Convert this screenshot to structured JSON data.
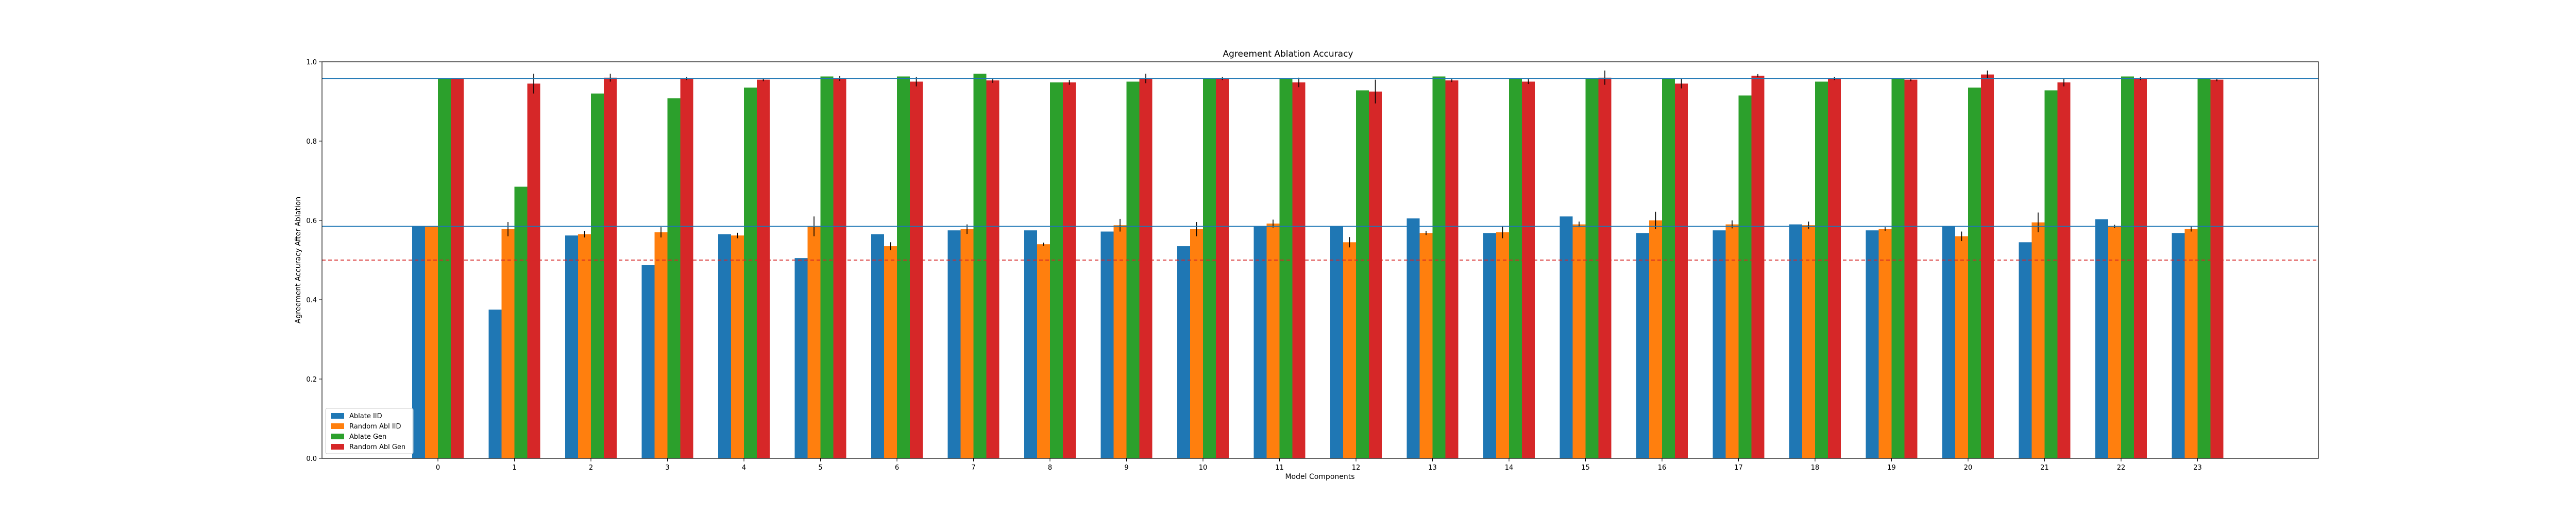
{
  "chart_data": {
    "type": "bar",
    "title": "Agreement Ablation Accuracy",
    "xlabel": "Model Components",
    "ylabel": "Agreement Accuracy After Ablation",
    "ylim": [
      0,
      1.0
    ],
    "yticks": [
      "0.0",
      "0.2",
      "0.4",
      "0.6",
      "0.8",
      "1.0"
    ],
    "categories": [
      "0",
      "1",
      "2",
      "3",
      "4",
      "5",
      "6",
      "7",
      "8",
      "9",
      "10",
      "11",
      "12",
      "13",
      "14",
      "15",
      "16",
      "17",
      "18",
      "19",
      "20",
      "21",
      "22",
      "23"
    ],
    "series": [
      {
        "name": "Ablate IID",
        "color": "#1f77b4",
        "values": [
          0.585,
          0.375,
          0.562,
          0.487,
          0.565,
          0.505,
          0.565,
          0.575,
          0.575,
          0.572,
          0.535,
          0.585,
          0.585,
          0.605,
          0.568,
          0.61,
          0.568,
          0.575,
          0.59,
          0.575,
          0.585,
          0.545,
          0.603,
          0.568
        ],
        "errors": [
          0,
          0,
          0,
          0,
          0,
          0,
          0,
          0,
          0,
          0,
          0,
          0,
          0,
          0,
          0,
          0,
          0,
          0,
          0,
          0,
          0,
          0,
          0,
          0
        ]
      },
      {
        "name": "Random Abl IID",
        "color": "#ff7f0e",
        "values": [
          0.585,
          0.578,
          0.565,
          0.57,
          0.562,
          0.585,
          0.535,
          0.578,
          0.54,
          0.588,
          0.578,
          0.592,
          0.545,
          0.568,
          0.57,
          0.59,
          0.6,
          0.59,
          0.588,
          0.578,
          0.56,
          0.595,
          0.585,
          0.578
        ],
        "errors": [
          0,
          0.018,
          0.008,
          0.013,
          0.007,
          0.025,
          0.01,
          0.012,
          0.004,
          0.016,
          0.018,
          0.01,
          0.013,
          0.005,
          0.015,
          0.007,
          0.022,
          0.01,
          0.009,
          0.005,
          0.012,
          0.025,
          0.004,
          0.006
        ]
      },
      {
        "name": "Ablate Gen",
        "color": "#2ca02c",
        "values": [
          0.958,
          0.685,
          0.92,
          0.908,
          0.935,
          0.963,
          0.963,
          0.97,
          0.948,
          0.95,
          0.958,
          0.958,
          0.928,
          0.963,
          0.958,
          0.958,
          0.958,
          0.915,
          0.95,
          0.958,
          0.935,
          0.928,
          0.963,
          0.958
        ],
        "errors": [
          0,
          0,
          0,
          0,
          0,
          0,
          0,
          0,
          0,
          0,
          0,
          0,
          0,
          0,
          0,
          0,
          0,
          0,
          0,
          0,
          0,
          0,
          0,
          0
        ]
      },
      {
        "name": "Random Abl Gen",
        "color": "#d62728",
        "values": [
          0.958,
          0.945,
          0.96,
          0.958,
          0.955,
          0.958,
          0.95,
          0.953,
          0.948,
          0.958,
          0.958,
          0.948,
          0.925,
          0.953,
          0.95,
          0.96,
          0.945,
          0.965,
          0.958,
          0.955,
          0.968,
          0.948,
          0.958,
          0.955
        ],
        "errors": [
          0,
          0.025,
          0.01,
          0.004,
          0.004,
          0.006,
          0.012,
          0.006,
          0.006,
          0.012,
          0.004,
          0.012,
          0.03,
          0.004,
          0.006,
          0.018,
          0.012,
          0.004,
          0.004,
          0.004,
          0.01,
          0.01,
          0.004,
          0.004
        ]
      }
    ],
    "reference_lines": [
      {
        "y": 0.958,
        "color": "#1f77b4",
        "style": "solid"
      },
      {
        "y": 0.585,
        "color": "#1f77b4",
        "style": "solid"
      },
      {
        "y": 0.5,
        "color": "#d62728",
        "style": "dashed"
      }
    ],
    "legend_position": "bottom-left",
    "grid": false
  }
}
